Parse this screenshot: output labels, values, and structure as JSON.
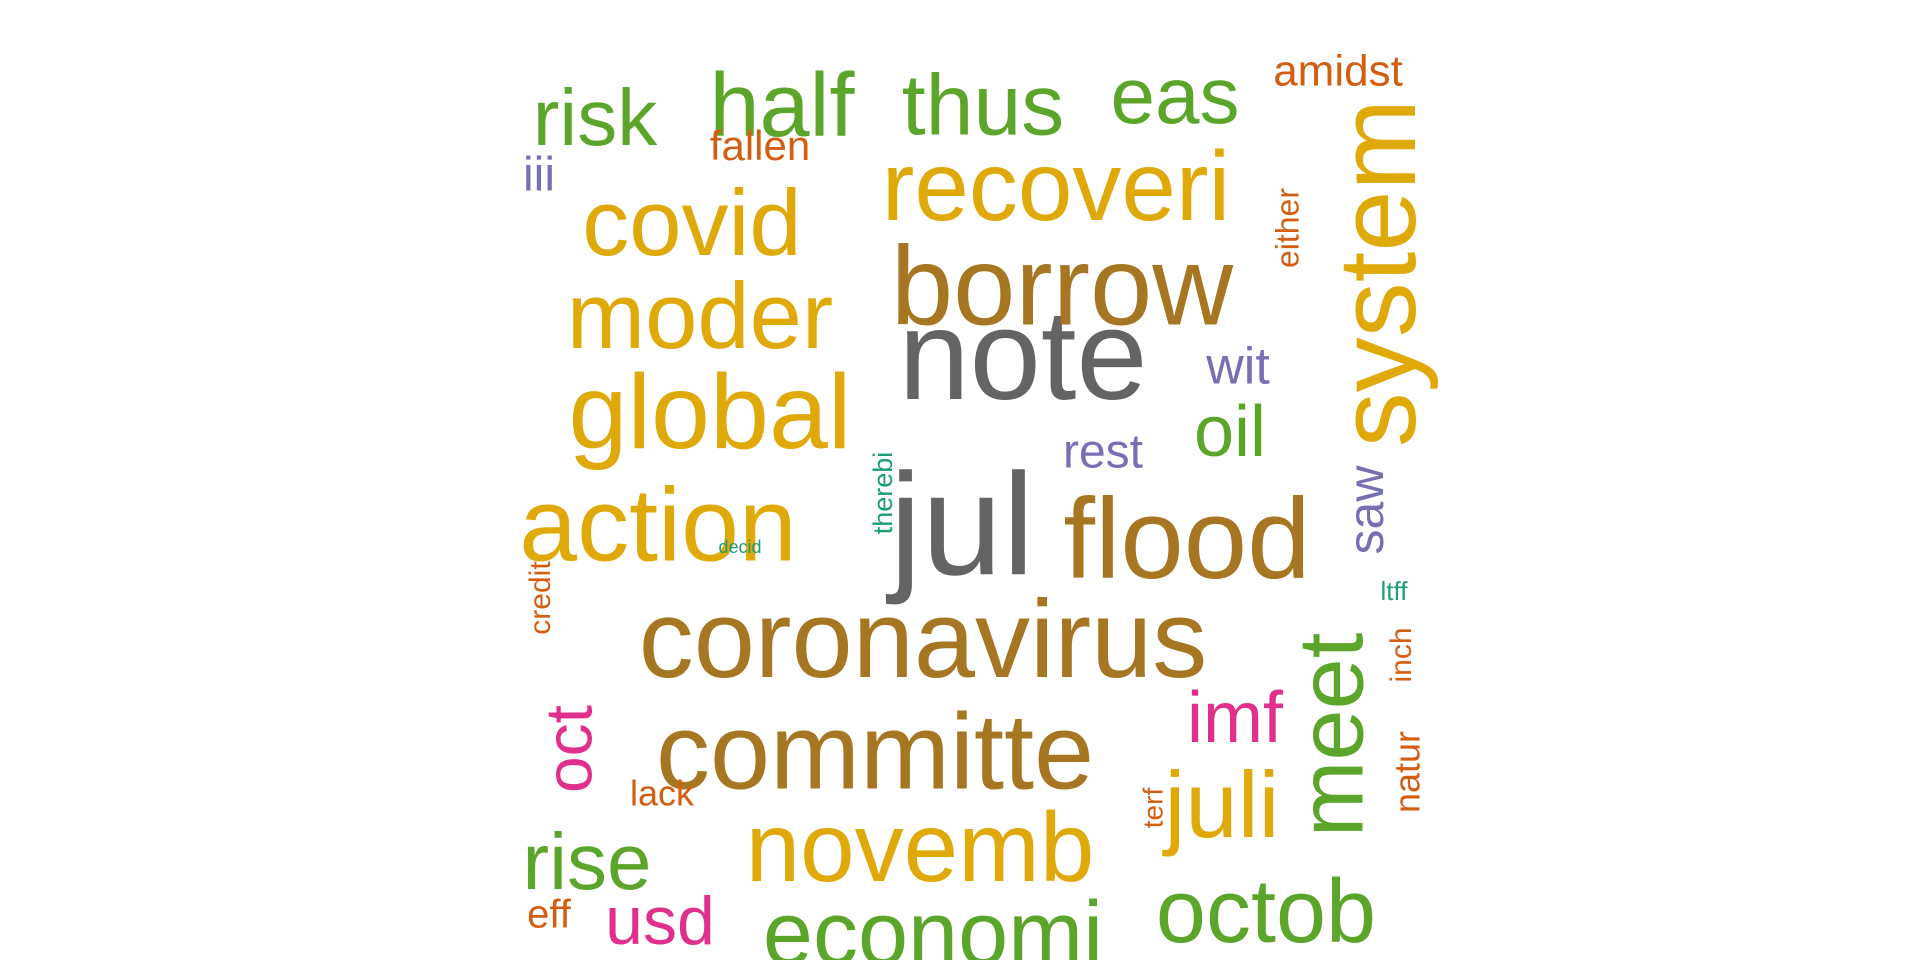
{
  "colors": {
    "gray": "#636466",
    "brown": "#a67623",
    "gold": "#e0a90a",
    "green": "#5ba52a",
    "orange": "#d35e12",
    "purple": "#7570b3",
    "pink": "#e0308b",
    "teal": "#1b9e77"
  },
  "words": [
    {
      "id": "note",
      "text": "note",
      "color": "gray",
      "rotate": 0
    },
    {
      "id": "jul",
      "text": "jul",
      "color": "gray",
      "rotate": 0
    },
    {
      "id": "coronavirus",
      "text": "coronavirus",
      "color": "brown",
      "rotate": 0
    },
    {
      "id": "committe",
      "text": "committe",
      "color": "brown",
      "rotate": 0
    },
    {
      "id": "borrow",
      "text": "borrow",
      "color": "brown",
      "rotate": 0
    },
    {
      "id": "flood",
      "text": "flood",
      "color": "brown",
      "rotate": 0
    },
    {
      "id": "system",
      "text": "system",
      "color": "gold",
      "rotate": -90
    },
    {
      "id": "global",
      "text": "global",
      "color": "gold",
      "rotate": 0
    },
    {
      "id": "action",
      "text": "action",
      "color": "gold",
      "rotate": 0
    },
    {
      "id": "recoveri",
      "text": "recoveri",
      "color": "gold",
      "rotate": 0
    },
    {
      "id": "novemb",
      "text": "novemb",
      "color": "gold",
      "rotate": 0
    },
    {
      "id": "moder",
      "text": "moder",
      "color": "gold",
      "rotate": 0
    },
    {
      "id": "covid",
      "text": "covid",
      "color": "gold",
      "rotate": 0
    },
    {
      "id": "juli",
      "text": "juli",
      "color": "gold",
      "rotate": 0
    },
    {
      "id": "economi",
      "text": "economi",
      "color": "green",
      "rotate": 0
    },
    {
      "id": "meet",
      "text": "meet",
      "color": "green",
      "rotate": -90
    },
    {
      "id": "octob",
      "text": "octob",
      "color": "green",
      "rotate": 0
    },
    {
      "id": "half",
      "text": "half",
      "color": "green",
      "rotate": 0
    },
    {
      "id": "thus",
      "text": "thus",
      "color": "green",
      "rotate": 0
    },
    {
      "id": "risk",
      "text": "risk",
      "color": "green",
      "rotate": 0
    },
    {
      "id": "eas",
      "text": "eas",
      "color": "green",
      "rotate": 0
    },
    {
      "id": "rise",
      "text": "rise",
      "color": "green",
      "rotate": 0
    },
    {
      "id": "oil",
      "text": "oil",
      "color": "green",
      "rotate": 0
    },
    {
      "id": "imf",
      "text": "imf",
      "color": "pink",
      "rotate": 0
    },
    {
      "id": "oct",
      "text": "oct",
      "color": "pink",
      "rotate": -90
    },
    {
      "id": "usd",
      "text": "usd",
      "color": "pink",
      "rotate": 0
    },
    {
      "id": "saw",
      "text": "saw",
      "color": "purple",
      "rotate": -90
    },
    {
      "id": "wit",
      "text": "wit",
      "color": "purple",
      "rotate": 0
    },
    {
      "id": "rest",
      "text": "rest",
      "color": "purple",
      "rotate": 0
    },
    {
      "id": "iii",
      "text": "iii",
      "color": "purple",
      "rotate": 0
    },
    {
      "id": "amidst",
      "text": "amidst",
      "color": "orange",
      "rotate": 0
    },
    {
      "id": "fallen",
      "text": "fallen",
      "color": "orange",
      "rotate": 0
    },
    {
      "id": "either",
      "text": "either",
      "color": "orange",
      "rotate": -90
    },
    {
      "id": "credit",
      "text": "credit",
      "color": "orange",
      "rotate": -90
    },
    {
      "id": "lack",
      "text": "lack",
      "color": "orange",
      "rotate": 0
    },
    {
      "id": "eff",
      "text": "eff",
      "color": "orange",
      "rotate": 0
    },
    {
      "id": "terf",
      "text": "terf",
      "color": "orange",
      "rotate": -90
    },
    {
      "id": "natur",
      "text": "natur",
      "color": "orange",
      "rotate": -90
    },
    {
      "id": "inch",
      "text": "inch",
      "color": "orange",
      "rotate": -90
    },
    {
      "id": "therebi",
      "text": "therebi",
      "color": "teal",
      "rotate": -90
    },
    {
      "id": "decid",
      "text": "decid",
      "color": "teal",
      "rotate": 0
    },
    {
      "id": "ltff",
      "text": "ltff",
      "color": "teal",
      "rotate": 0
    }
  ]
}
